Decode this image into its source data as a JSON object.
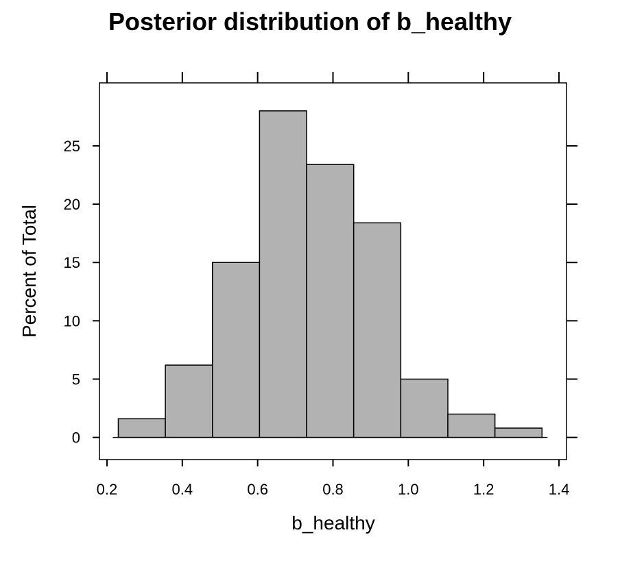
{
  "chart_data": {
    "type": "bar",
    "title": "Posterior distribution of b_healthy",
    "xlabel": "b_healthy",
    "ylabel": "Percent of Total",
    "bins": [
      {
        "x0": 0.23,
        "x1": 0.355,
        "value": 1.6
      },
      {
        "x0": 0.355,
        "x1": 0.48,
        "value": 6.2
      },
      {
        "x0": 0.48,
        "x1": 0.605,
        "value": 15.0
      },
      {
        "x0": 0.605,
        "x1": 0.73,
        "value": 28.0
      },
      {
        "x0": 0.73,
        "x1": 0.855,
        "value": 23.4
      },
      {
        "x0": 0.855,
        "x1": 0.98,
        "value": 18.4
      },
      {
        "x0": 0.98,
        "x1": 1.105,
        "value": 5.0
      },
      {
        "x0": 1.105,
        "x1": 1.23,
        "value": 2.0
      },
      {
        "x0": 1.23,
        "x1": 1.355,
        "value": 0.8
      }
    ],
    "xlim": [
      0.18,
      1.42
    ],
    "ylim": [
      -1.9,
      30.4
    ],
    "xticks": [
      {
        "value": 0.2,
        "label": "0.2"
      },
      {
        "value": 0.4,
        "label": "0.4"
      },
      {
        "value": 0.6,
        "label": "0.6"
      },
      {
        "value": 0.8,
        "label": "0.8"
      },
      {
        "value": 1.0,
        "label": "1.0"
      },
      {
        "value": 1.2,
        "label": "1.2"
      },
      {
        "value": 1.4,
        "label": "1.4"
      }
    ],
    "yticks": [
      {
        "value": 0,
        "label": "0"
      },
      {
        "value": 5,
        "label": "5"
      },
      {
        "value": 10,
        "label": "10"
      },
      {
        "value": 15,
        "label": "15"
      },
      {
        "value": 20,
        "label": "20"
      },
      {
        "value": 25,
        "label": "25"
      }
    ],
    "grid": false,
    "bar_color": "#b2b2b2",
    "edge_color": "#000000"
  }
}
